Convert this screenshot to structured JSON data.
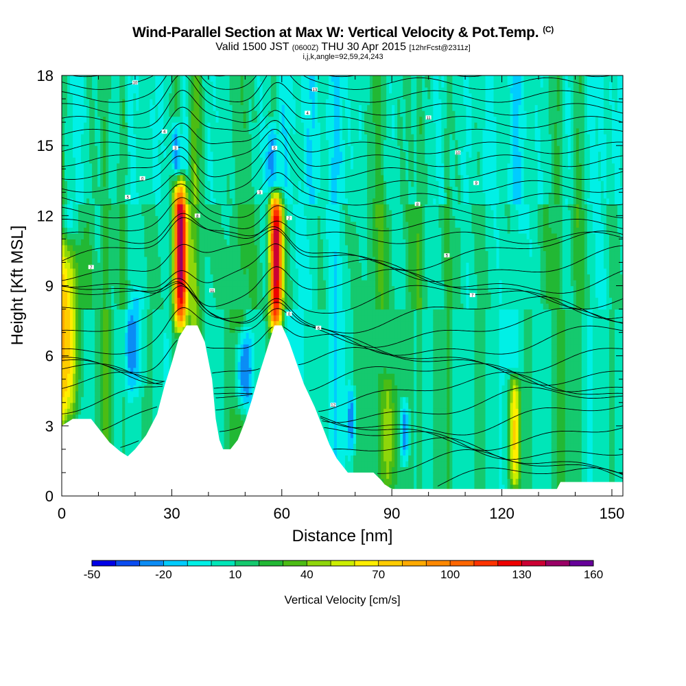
{
  "header": {
    "title": "Wind-Parallel Section at Max W: Vertical Velocity & Pot.Temp.",
    "copyright_mark": "(C)",
    "valid_prefix": "Valid 1500 JST",
    "valid_utc": "(0600Z)",
    "valid_date": "THU 30 Apr 2015",
    "forecast_info": "[12hrFcst@2311z]",
    "indices": "i,j,k,angle=92,59,24,243"
  },
  "chart_data": {
    "type": "heatmap",
    "xlabel": "Distance [nm]",
    "ylabel": "Height [Kft MSL]",
    "xlim": [
      0,
      153
    ],
    "ylim": [
      0,
      18
    ],
    "x_ticks": [
      0,
      30,
      60,
      90,
      120,
      150
    ],
    "y_ticks": [
      0,
      3,
      6,
      9,
      12,
      15,
      18
    ],
    "colorbar": {
      "title": "Vertical Velocity [cm/s]",
      "tick_labels": [
        "-50",
        "-20",
        "10",
        "40",
        "70",
        "100",
        "130",
        "160"
      ],
      "tick_values": [
        -50,
        -20,
        10,
        40,
        70,
        100,
        130,
        160
      ],
      "levels": [
        -50,
        -40,
        -30,
        -20,
        -10,
        0,
        10,
        20,
        30,
        40,
        50,
        60,
        70,
        80,
        90,
        100,
        110,
        120,
        130,
        140,
        150,
        160
      ],
      "colors": [
        "#0000e6",
        "#0a4cf0",
        "#0b8cf5",
        "#00ccff",
        "#00f0e6",
        "#00e6b8",
        "#15c96e",
        "#22b834",
        "#4cbc14",
        "#8fd60a",
        "#ccee00",
        "#ffee00",
        "#ffcc00",
        "#ffaa00",
        "#ff8800",
        "#ff6600",
        "#ff3300",
        "#ee0000",
        "#cc0033",
        "#990066",
        "#660099"
      ]
    },
    "terrain": [
      [
        0,
        3.0
      ],
      [
        3,
        3.3
      ],
      [
        8,
        3.3
      ],
      [
        10,
        2.9
      ],
      [
        13,
        2.3
      ],
      [
        16,
        1.9
      ],
      [
        18,
        1.7
      ],
      [
        20,
        2.0
      ],
      [
        23,
        2.6
      ],
      [
        26,
        3.5
      ],
      [
        28,
        4.7
      ],
      [
        30,
        5.7
      ],
      [
        32,
        6.8
      ],
      [
        34,
        7.3
      ],
      [
        37,
        7.3
      ],
      [
        39,
        6.6
      ],
      [
        41,
        5.0
      ],
      [
        42,
        3.3
      ],
      [
        43,
        2.4
      ],
      [
        44,
        2.0
      ],
      [
        46,
        2.0
      ],
      [
        48,
        2.4
      ],
      [
        50,
        3.2
      ],
      [
        52,
        4.2
      ],
      [
        54,
        5.3
      ],
      [
        56,
        6.3
      ],
      [
        58,
        7.3
      ],
      [
        60,
        7.3
      ],
      [
        62,
        6.6
      ],
      [
        64,
        5.7
      ],
      [
        66,
        4.8
      ],
      [
        69,
        3.8
      ],
      [
        71,
        3.0
      ],
      [
        73,
        2.2
      ],
      [
        75,
        1.6
      ],
      [
        78,
        1.0
      ],
      [
        85,
        1.0
      ],
      [
        87,
        0.7
      ],
      [
        88,
        0.5
      ],
      [
        90,
        0.3
      ],
      [
        100,
        0.3
      ],
      [
        120,
        0.3
      ],
      [
        130,
        0.3
      ],
      [
        135,
        0.3
      ],
      [
        136,
        0.6
      ],
      [
        140,
        0.6
      ],
      [
        153,
        0.6
      ]
    ],
    "updrafts": [
      {
        "x": 1.8,
        "y_bottom": 3.2,
        "y_top": 11.0,
        "w_max": 65,
        "halfwidth": 3.0
      },
      {
        "x": 32.5,
        "y_bottom": 7.3,
        "y_top": 13.5,
        "w_max": 125,
        "halfwidth": 1.8
      },
      {
        "x": 58.5,
        "y_bottom": 7.3,
        "y_top": 12.8,
        "w_max": 130,
        "halfwidth": 1.8
      },
      {
        "x": 123.5,
        "y_bottom": 0.3,
        "y_top": 5.0,
        "w_max": 75,
        "halfwidth": 1.6
      },
      {
        "x": 89,
        "y_bottom": 0.3,
        "y_top": 5.0,
        "w_max": 30,
        "halfwidth": 2.0
      }
    ],
    "downdrafts": [
      {
        "x": 19.5,
        "y_bottom": 4.5,
        "y_top": 8.5,
        "w_min": -30,
        "halfwidth": 2.5
      },
      {
        "x": 49.5,
        "y_bottom": 3.8,
        "y_top": 7.0,
        "w_min": -45,
        "halfwidth": 2.5
      },
      {
        "x": 31,
        "y_bottom": 13.5,
        "y_top": 16.0,
        "w_min": -45,
        "halfwidth": 1.2
      },
      {
        "x": 57.2,
        "y_bottom": 13.0,
        "y_top": 15.8,
        "w_min": -45,
        "halfwidth": 1.2
      },
      {
        "x": 93.5,
        "y_bottom": 1.5,
        "y_top": 4.0,
        "w_min": -45,
        "halfwidth": 1.2
      },
      {
        "x": 79,
        "y_bottom": 2.0,
        "y_top": 4.5,
        "w_min": -35,
        "halfwidth": 1.2
      }
    ],
    "contour_labels": [
      "10",
      "4",
      "3",
      "0",
      "5",
      "8",
      "7",
      "11",
      "5",
      "3",
      "2",
      "0",
      "13",
      "4",
      "6",
      "12",
      "11",
      "10",
      "9",
      "8",
      "5",
      "7"
    ]
  }
}
